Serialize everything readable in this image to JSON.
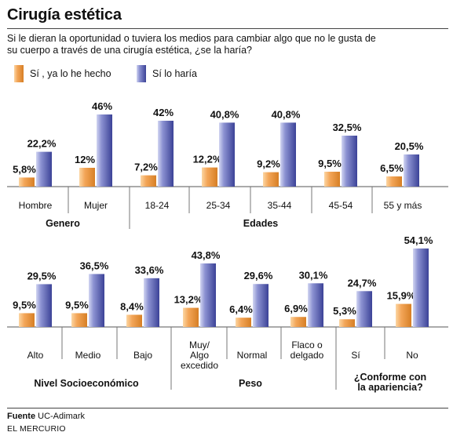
{
  "header": {
    "title": "Cirugía estética",
    "question": "Si le dieran la oportunidad o tuviera los medios para cambiar algo que no le gusta de su cuerpo a través de una cirugía estética, ¿se la haría?"
  },
  "legend": [
    {
      "label": "Sí , ya lo he hecho",
      "color": "#e08a2e"
    },
    {
      "label": "Sí lo haría",
      "color": "#4b52a8"
    }
  ],
  "footer": {
    "source_label": "Fuente",
    "source_value": "UC-Adimark",
    "publisher": "EL MERCURIO"
  },
  "chart_data": [
    {
      "type": "bar",
      "series": [
        {
          "name": "Sí , ya lo he hecho",
          "values": [
            5.8,
            12,
            7.2,
            12.2,
            9.2,
            9.5,
            6.5
          ]
        },
        {
          "name": "Sí lo haría",
          "values": [
            22.2,
            46,
            42,
            40.8,
            40.8,
            32.5,
            20.5
          ]
        }
      ],
      "categories": [
        "Hombre",
        "Mujer",
        "18-24",
        "25-34",
        "35-44",
        "45-54",
        "55 y más"
      ],
      "data_labels": [
        [
          "5,8%",
          "12%",
          "7,2%",
          "12,2%",
          "9,2%",
          "9,5%",
          "6,5%"
        ],
        [
          "22,2%",
          "46%",
          "42%",
          "40,8%",
          "40,8%",
          "32,5%",
          "20,5%"
        ]
      ],
      "groups": [
        {
          "label": "Genero",
          "categories": [
            0,
            1
          ]
        },
        {
          "label": "Edades",
          "categories": [
            2,
            3,
            4,
            5,
            6
          ]
        }
      ],
      "ylim": [
        0,
        50
      ]
    },
    {
      "type": "bar",
      "series": [
        {
          "name": "Sí , ya lo he hecho",
          "values": [
            9.5,
            9.5,
            8.4,
            13.2,
            6.4,
            6.9,
            5.3,
            15.9
          ]
        },
        {
          "name": "Sí lo haría",
          "values": [
            29.5,
            36.5,
            33.6,
            43.8,
            29.6,
            30.1,
            24.7,
            54.1
          ]
        }
      ],
      "categories": [
        "Alto",
        "Medio",
        "Bajo",
        "Muy/ Algo excedido",
        "Normal",
        "Flaco o delgado",
        "Sí",
        "No"
      ],
      "data_labels": [
        [
          "9,5%",
          "9,5%",
          "8,4%",
          "13,2%",
          "6,4%",
          "6,9%",
          "5,3%",
          "15,9%"
        ],
        [
          "29,5%",
          "36,5%",
          "33,6%",
          "43,8%",
          "29,6%",
          "30,1%",
          "24,7%",
          "54,1%"
        ]
      ],
      "groups": [
        {
          "label": "Nivel Socioeconómico",
          "categories": [
            0,
            1,
            2
          ]
        },
        {
          "label": "Peso",
          "categories": [
            3,
            4,
            5
          ]
        },
        {
          "label": "¿Conforme con la apariencia?",
          "categories": [
            6,
            7
          ]
        }
      ],
      "ylim": [
        0,
        60
      ]
    }
  ]
}
